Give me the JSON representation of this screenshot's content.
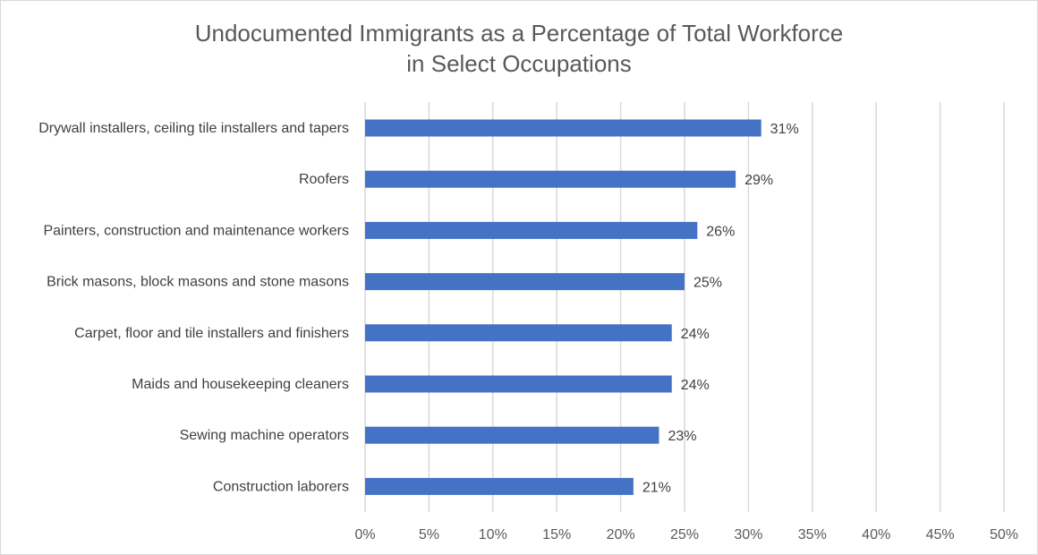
{
  "title": {
    "line1": "Undocumented Immigrants as a Percentage of Total Workforce",
    "line2": "in Select Occupations"
  },
  "colors": {
    "bar": "#4472c4",
    "grid": "#d9d9d9",
    "frame": "#d9d9d9"
  },
  "chart_data": {
    "type": "bar",
    "orientation": "horizontal",
    "title": "Undocumented Immigrants as a Percentage of Total Workforce in Select Occupations",
    "xlabel": "",
    "ylabel": "",
    "categories": [
      "Drywall installers, ceiling tile installers and tapers",
      "Roofers",
      "Painters, construction and maintenance workers",
      "Brick masons, block masons and stone masons",
      "Carpet, floor and tile installers and finishers",
      "Maids and housekeeping cleaners",
      "Sewing machine operators",
      "Construction laborers"
    ],
    "values": [
      31,
      29,
      26,
      25,
      24,
      24,
      23,
      21
    ],
    "value_labels": [
      "31%",
      "29%",
      "26%",
      "25%",
      "24%",
      "24%",
      "23%",
      "21%"
    ],
    "xlim": [
      0,
      50
    ],
    "ticks": [
      0,
      5,
      10,
      15,
      20,
      25,
      30,
      35,
      40,
      45,
      50
    ],
    "tick_labels": [
      "0%",
      "5%",
      "10%",
      "15%",
      "20%",
      "25%",
      "30%",
      "35%",
      "40%",
      "45%",
      "50%"
    ],
    "grid": true,
    "legend": "none"
  }
}
